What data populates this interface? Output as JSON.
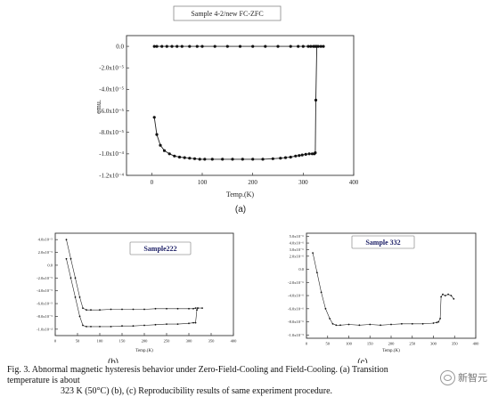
{
  "figure": {
    "caption_line1": "Fig. 3.  Abnormal magnetic hysteresis behavior under Zero-Field-Cooling and Field-Cooling. (a) Transition temperature is about",
    "caption_line2": "323 K (50°C) (b), (c) Reproducibility results of same experiment procedure.",
    "watermark": "新智元",
    "panel_labels": [
      "(a)",
      "(b)",
      "(c)"
    ]
  },
  "chart_data": [
    {
      "type": "line",
      "title": "Sample 4-2/new FC-ZFC",
      "xlabel": "Temp.(K)",
      "ylabel": "emu.",
      "xlim": [
        -50,
        400
      ],
      "ylim": [
        -0.00012,
        1e-05
      ],
      "x_ticks": [
        "0",
        "100",
        "200",
        "300",
        "400"
      ],
      "y_ticks": [
        "0.0",
        "-2.0x10⁻⁵",
        "-4.0x10⁻⁵",
        "-6.0x10⁻⁵",
        "-8.0x10⁻⁵",
        "-1.0x10⁻⁴",
        "-1.2x10⁻⁴"
      ],
      "y_tick_values": [
        0,
        -2e-05,
        -4e-05,
        -6e-05,
        -8e-05,
        -0.0001,
        -0.00012
      ],
      "x_tick_values": [
        0,
        100,
        200,
        300,
        400
      ],
      "series": [
        {
          "x": [
            5,
            10,
            20,
            30,
            40,
            50,
            60,
            75,
            90,
            100,
            125,
            150,
            175,
            200,
            225,
            250,
            275,
            290,
            300,
            310,
            315,
            320,
            323,
            326,
            330,
            335,
            340
          ],
          "values": [
            0,
            0,
            0,
            0,
            0,
            0,
            0,
            0,
            0,
            0,
            0,
            0,
            0,
            0,
            0,
            0,
            0,
            0,
            0,
            0,
            0,
            0,
            0,
            0,
            0,
            0,
            0
          ]
        },
        {
          "x": [
            5,
            10,
            17,
            25,
            35,
            45,
            55,
            65,
            75,
            85,
            95,
            105,
            120,
            140,
            160,
            180,
            200,
            220,
            240,
            255,
            265,
            275,
            285,
            292,
            298,
            305,
            312,
            318,
            322,
            324,
            325,
            327
          ],
          "values": [
            -6.6e-05,
            -8.2e-05,
            -9.2e-05,
            -9.7e-05,
            -0.0001,
            -0.000102,
            -0.000103,
            -0.0001035,
            -0.000104,
            -0.0001045,
            -0.000105,
            -0.000105,
            -0.000105,
            -0.000105,
            -0.000105,
            -0.000105,
            -0.000105,
            -0.000105,
            -0.0001045,
            -0.000104,
            -0.0001035,
            -0.000103,
            -0.000102,
            -0.0001015,
            -0.000101,
            -0.0001005,
            -0.0001,
            -0.0001,
            -0.0001,
            -9.9e-05,
            -5e-05,
            0
          ]
        }
      ]
    },
    {
      "type": "line",
      "title": "Sample222",
      "xlabel": "Temp.(K)",
      "ylabel": "",
      "xlim": [
        0,
        400
      ],
      "ylim": [
        -0.00011,
        5e-05
      ],
      "x_ticks": [
        "0",
        "50",
        "100",
        "150",
        "200",
        "250",
        "300",
        "350",
        "400"
      ],
      "x_tick_values": [
        0,
        50,
        100,
        150,
        200,
        250,
        300,
        350,
        400
      ],
      "y_ticks": [
        "4.0x10⁻⁵",
        "2.0x10⁻⁵",
        "0.0",
        "-2.0x10⁻⁵",
        "-4.0x10⁻⁵",
        "-6.0x10⁻⁵",
        "-8.0x10⁻⁵",
        "-1.0x10⁻⁴"
      ],
      "y_tick_values": [
        4e-05,
        2e-05,
        0,
        -2e-05,
        -4e-05,
        -6e-05,
        -8e-05,
        -0.0001
      ],
      "series": [
        {
          "x": [
            25,
            35,
            45,
            55,
            62,
            70,
            80,
            100,
            125,
            150,
            175,
            200,
            225,
            250,
            275,
            300,
            310,
            315,
            320,
            330
          ],
          "values": [
            4e-05,
            1e-05,
            -2e-05,
            -5e-05,
            -6.7e-05,
            -7e-05,
            -7e-05,
            -7e-05,
            -6.9e-05,
            -6.9e-05,
            -6.9e-05,
            -6.9e-05,
            -6.8e-05,
            -6.8e-05,
            -6.8e-05,
            -6.8e-05,
            -6.8e-05,
            -6.7e-05,
            -6.7e-05,
            -6.7e-05
          ]
        },
        {
          "x": [
            25,
            35,
            45,
            55,
            62,
            70,
            80,
            100,
            125,
            150,
            175,
            200,
            225,
            250,
            275,
            300,
            310,
            315,
            318,
            320
          ],
          "values": [
            1e-05,
            -2e-05,
            -5e-05,
            -8e-05,
            -9.4e-05,
            -9.6e-05,
            -9.6e-05,
            -9.6e-05,
            -9.6e-05,
            -9.5e-05,
            -9.5e-05,
            -9.4e-05,
            -9.3e-05,
            -9.2e-05,
            -9.2e-05,
            -9.1e-05,
            -9e-05,
            -9e-05,
            -7e-05,
            -6.7e-05
          ]
        }
      ]
    },
    {
      "type": "line",
      "title": "Sample 332",
      "xlabel": "Temp.(K)",
      "ylabel": "",
      "xlim": [
        0,
        400
      ],
      "ylim": [
        -1.05e-05,
        5.5e-06
      ],
      "x_ticks": [
        "0",
        "50",
        "100",
        "150",
        "200",
        "250",
        "300",
        "350",
        "400"
      ],
      "x_tick_values": [
        0,
        50,
        100,
        150,
        200,
        250,
        300,
        350,
        400
      ],
      "y_ticks": [
        "5.0x10⁻⁶",
        "4.0x10⁻⁶",
        "3.0x10⁻⁶",
        "2.0x10⁻⁶",
        "0.0",
        "-2.0x10⁻⁶",
        "-4.0x10⁻⁶",
        "-6.0x10⁻⁶",
        "-8.0x10⁻⁶",
        "-1.0x10⁻⁵"
      ],
      "y_tick_values": [
        5e-06,
        4e-06,
        3e-06,
        2e-06,
        0,
        -2e-06,
        -4e-06,
        -6e-06,
        -8e-06,
        -1e-05
      ],
      "series": [
        {
          "x": [
            15,
            25,
            35,
            45,
            55,
            62,
            70,
            80,
            100,
            125,
            150,
            175,
            200,
            225,
            250,
            275,
            300,
            308,
            312,
            316,
            318,
            322,
            328,
            335,
            342,
            348
          ],
          "values": [
            2.5e-06,
            -5e-07,
            -3.5e-06,
            -6e-06,
            -7.5e-06,
            -8.3e-06,
            -8.5e-06,
            -8.5e-06,
            -8.4e-06,
            -8.5e-06,
            -8.4e-06,
            -8.5e-06,
            -8.4e-06,
            -8.3e-06,
            -8.3e-06,
            -8.3e-06,
            -8.2e-06,
            -8.1e-06,
            -8e-06,
            -7.5e-06,
            -4.2e-06,
            -3.8e-06,
            -4e-06,
            -3.8e-06,
            -4e-06,
            -4.5e-06
          ]
        }
      ]
    }
  ]
}
